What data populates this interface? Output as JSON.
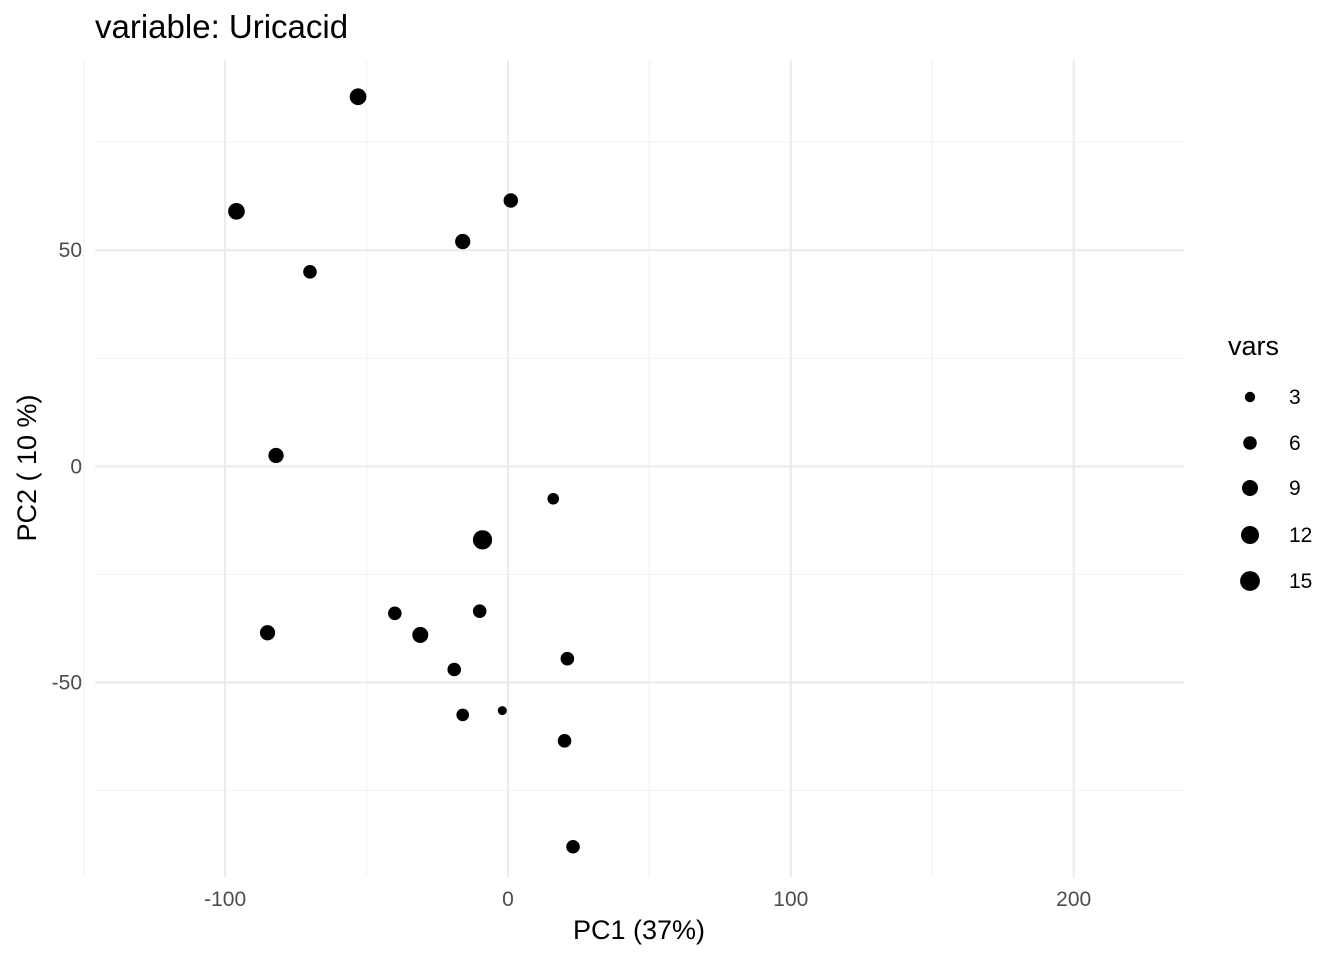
{
  "chart_data": {
    "type": "scatter",
    "title": "variable: Uricacid",
    "xlabel": "PC1 (37%)",
    "ylabel": "PC2 ( 10 %)",
    "xlim": [
      -146,
      239
    ],
    "ylim": [
      -95,
      94
    ],
    "x_ticks": [
      -100,
      0,
      100,
      200
    ],
    "x_tick_labels": [
      "-100",
      "0",
      "100",
      "200"
    ],
    "x_minor": [
      -150,
      -50,
      50,
      150
    ],
    "y_ticks": [
      -50,
      0,
      50
    ],
    "y_tick_labels": [
      "-50",
      "0",
      "50"
    ],
    "y_minor": [
      -75,
      -25,
      25,
      75
    ],
    "grid": true,
    "point_color": "#000000",
    "size_legend": {
      "title": "vars",
      "position": "right",
      "values": [
        3,
        6,
        9,
        12,
        15
      ],
      "labels": [
        "3",
        "6",
        "9",
        "12",
        "15"
      ]
    },
    "points": [
      {
        "x": -53,
        "y": 85.5,
        "vars": 10
      },
      {
        "x": -96,
        "y": 59,
        "vars": 10
      },
      {
        "x": 1,
        "y": 61.5,
        "vars": 7
      },
      {
        "x": -16,
        "y": 52,
        "vars": 8
      },
      {
        "x": -70,
        "y": 45,
        "vars": 6
      },
      {
        "x": -82,
        "y": 2.5,
        "vars": 8
      },
      {
        "x": 16,
        "y": -7.5,
        "vars": 4
      },
      {
        "x": -9,
        "y": -17,
        "vars": 14
      },
      {
        "x": -85,
        "y": -38.5,
        "vars": 8
      },
      {
        "x": -40,
        "y": -34,
        "vars": 6
      },
      {
        "x": -31,
        "y": -39,
        "vars": 9
      },
      {
        "x": -10,
        "y": -33.5,
        "vars": 6
      },
      {
        "x": -19,
        "y": -47,
        "vars": 6
      },
      {
        "x": 21,
        "y": -44.5,
        "vars": 6
      },
      {
        "x": -16,
        "y": -57.5,
        "vars": 5
      },
      {
        "x": -2,
        "y": -56.5,
        "vars": 2
      },
      {
        "x": 20,
        "y": -63.5,
        "vars": 6
      },
      {
        "x": 23,
        "y": -88,
        "vars": 6
      }
    ]
  }
}
